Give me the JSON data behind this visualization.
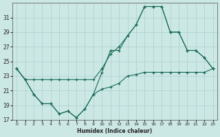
{
  "xlabel": "Humidex (Indice chaleur)",
  "background_color": "#cce8e5",
  "grid_color": "#aacece",
  "line_color": "#1a6b5a",
  "x": [
    0,
    1,
    2,
    3,
    4,
    5,
    6,
    7,
    8,
    9,
    10,
    11,
    12,
    13,
    14,
    15,
    16,
    17,
    18,
    19,
    20,
    21,
    22,
    23
  ],
  "top_y": [
    24.0,
    22.5,
    22.5,
    22.5,
    22.5,
    22.5,
    22.5,
    22.5,
    22.5,
    22.5,
    24.0,
    26.0,
    27.0,
    28.5,
    30.0,
    32.5,
    32.5,
    32.5,
    29.0,
    29.0,
    26.5,
    26.5,
    25.5,
    24.0
  ],
  "mid_y": [
    24.0,
    22.5,
    20.5,
    19.2,
    19.2,
    17.8,
    18.2,
    17.3,
    18.5,
    20.5,
    23.5,
    26.5,
    26.5,
    28.5,
    30.0,
    32.5,
    32.5,
    32.5,
    29.0,
    29.0,
    26.5,
    26.5,
    25.5,
    24.0
  ],
  "bot_y": [
    24.0,
    22.5,
    20.5,
    19.2,
    19.2,
    17.8,
    18.2,
    17.3,
    18.5,
    20.5,
    21.2,
    21.5,
    22.0,
    23.0,
    23.2,
    23.5,
    23.5,
    23.5,
    23.5,
    23.5,
    23.5,
    23.5,
    23.5,
    24.0
  ],
  "ylim": [
    17,
    33
  ],
  "xlim": [
    -0.5,
    23.5
  ],
  "yticks": [
    17,
    19,
    21,
    23,
    25,
    27,
    29,
    31
  ],
  "xticks": [
    0,
    1,
    2,
    3,
    4,
    5,
    6,
    7,
    8,
    9,
    10,
    11,
    12,
    13,
    14,
    15,
    16,
    17,
    18,
    19,
    20,
    21,
    22,
    23
  ]
}
